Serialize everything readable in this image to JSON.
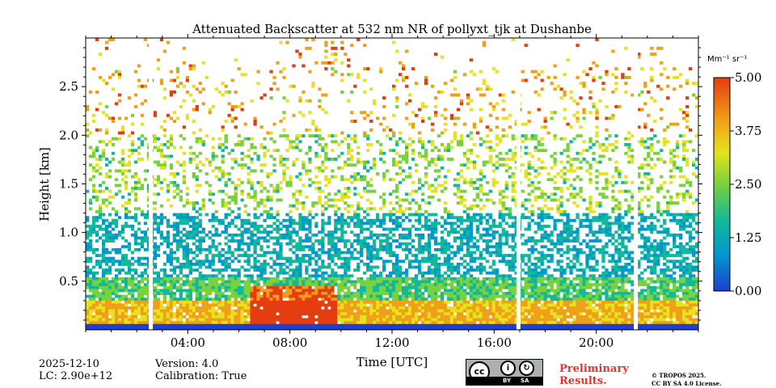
{
  "chart_data": {
    "type": "heatmap",
    "title": "Attenuated Backscatter at 532 nm NR of pollyxt_tjk at Dushanbe",
    "xlabel": "Time [UTC]",
    "ylabel": "Height [km]",
    "x_range_hours": [
      0,
      24
    ],
    "ylim": [
      0,
      3.0
    ],
    "x_ticks": [
      {
        "value": 4,
        "label": "04:00"
      },
      {
        "value": 8,
        "label": "08:00"
      },
      {
        "value": 12,
        "label": "12:00"
      },
      {
        "value": 16,
        "label": "16:00"
      },
      {
        "value": 20,
        "label": "20:00"
      }
    ],
    "y_ticks": [
      {
        "value": 0.5,
        "label": "0.5"
      },
      {
        "value": 1.0,
        "label": "1.0"
      },
      {
        "value": 1.5,
        "label": "1.5"
      },
      {
        "value": 2.0,
        "label": "2.0"
      },
      {
        "value": 2.5,
        "label": "2.5"
      }
    ],
    "colorbar": {
      "unit_label": "Mm⁻¹ sr⁻¹",
      "range": [
        0,
        5
      ],
      "ticks": [
        {
          "value": 0.0,
          "label": "0.00"
        },
        {
          "value": 1.25,
          "label": "1.25"
        },
        {
          "value": 2.5,
          "label": "2.50"
        },
        {
          "value": 3.75,
          "label": "3.75"
        },
        {
          "value": 5.0,
          "label": "5.00"
        }
      ],
      "colors": [
        "#1f3fd0",
        "#0099cc",
        "#12b89a",
        "#78d23c",
        "#e6e21e",
        "#f0a018",
        "#e53c10"
      ]
    },
    "data_gaps_hours": [
      2.55,
      16.95,
      21.55
    ],
    "description_layers": [
      {
        "name": "surface-layer",
        "height_km": [
          0,
          0.1
        ],
        "level": 0.3
      },
      {
        "name": "aerosol-layer",
        "height_km": [
          0.05,
          0.3
        ],
        "level": 3.5
      },
      {
        "name": "dense-aerosol-09-10",
        "time_h": [
          6.4,
          9.9
        ],
        "height_km": [
          0.05,
          0.45
        ],
        "level": 4.9
      }
    ]
  },
  "footer": {
    "date": "2025-12-10",
    "lc": "LC: 2.90e+12",
    "version": "Version: 4.0",
    "calibration": "Calibration: True",
    "preliminary_line1": "Preliminary",
    "preliminary_line2": "Results.",
    "license_line1": "© TROPOS 2025.",
    "license_line2": "CC BY SA 4.0 License.",
    "cc_by": "BY",
    "cc_sa": "SA",
    "cc_logo": "cc"
  },
  "colors": {
    "axis": "#000000",
    "gap": "#ffffff",
    "preliminary": "#e8322e"
  }
}
